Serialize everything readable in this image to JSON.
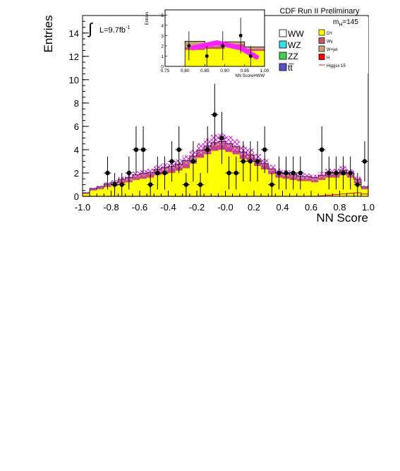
{
  "chart_data": {
    "type": "bar",
    "title": "CDF Run II Preliminary",
    "xlabel": "NN Score",
    "ylabel": "Entries",
    "lumi_label": "L=9.7fb",
    "lumi_sup": "-1",
    "mass_label": "m",
    "mass_sub": "H",
    "mass_value": "=145",
    "xlim": [
      -1.0,
      1.0
    ],
    "ylim": [
      0,
      15.5
    ],
    "xticks": [
      "-1.0",
      "-0.8",
      "-0.6",
      "-0.4",
      "-0.2",
      "-0.0",
      "0.2",
      "0.4",
      "0.6",
      "0.8",
      "1.0"
    ],
    "yticks": [
      "0",
      "2",
      "4",
      "6",
      "8",
      "10",
      "12",
      "14"
    ],
    "bin_edges_start": -1.0,
    "bin_width": 0.05,
    "legend": [
      {
        "label": "WW",
        "color": "#ffffff"
      },
      {
        "label": "WZ",
        "color": "#33ddee"
      },
      {
        "label": "ZZ",
        "color": "#44cc55"
      },
      {
        "label": "tt̅",
        "color": "#5555cc"
      },
      {
        "label": "DY",
        "color": "#ffff00"
      },
      {
        "label": "Wγ",
        "color": "#c8556a"
      },
      {
        "label": "W+jet",
        "color": "#c8a27a"
      },
      {
        "label": "H",
        "color": "#ff0000"
      },
      {
        "label": "Higgsx 15",
        "color": "#cc2222"
      }
    ],
    "series": [
      {
        "name": "DY",
        "color": "#ffff00",
        "values": [
          0.2,
          0.5,
          0.6,
          0.8,
          0.9,
          1.1,
          1.2,
          1.4,
          1.5,
          1.6,
          1.8,
          1.9,
          2.0,
          2.2,
          2.4,
          2.8,
          3.3,
          3.6,
          3.9,
          4.0,
          3.8,
          3.6,
          3.2,
          3.0,
          2.6,
          2.3,
          1.9,
          1.6,
          1.5,
          1.4,
          1.3,
          1.3,
          1.2,
          1.4,
          1.6,
          1.6,
          1.8,
          1.6,
          1.1,
          0.6
        ]
      },
      {
        "name": "Wγ",
        "color": "#c8556a",
        "values": [
          0.05,
          0.1,
          0.1,
          0.15,
          0.15,
          0.2,
          0.2,
          0.25,
          0.25,
          0.25,
          0.3,
          0.3,
          0.3,
          0.3,
          0.35,
          0.35,
          0.35,
          0.4,
          0.4,
          0.4,
          0.4,
          0.35,
          0.35,
          0.3,
          0.3,
          0.3,
          0.25,
          0.25,
          0.25,
          0.25,
          0.2,
          0.2,
          0.2,
          0.2,
          0.25,
          0.25,
          0.25,
          0.2,
          0.2,
          0.1
        ]
      },
      {
        "name": "W+jet",
        "color": "#c8a27a",
        "values": [
          0.05,
          0.05,
          0.1,
          0.1,
          0.15,
          0.15,
          0.2,
          0.2,
          0.2,
          0.2,
          0.2,
          0.25,
          0.25,
          0.25,
          0.3,
          0.3,
          0.3,
          0.3,
          0.3,
          0.3,
          0.3,
          0.3,
          0.25,
          0.25,
          0.25,
          0.2,
          0.2,
          0.2,
          0.2,
          0.2,
          0.2,
          0.2,
          0.2,
          0.2,
          0.2,
          0.2,
          0.2,
          0.2,
          0.15,
          0.1
        ]
      },
      {
        "name": "Higgsx 15",
        "color": "#cc2222",
        "values": [
          0.0,
          0.0,
          0.0,
          0.0,
          0.0,
          0.0,
          0.0,
          0.0,
          0.0,
          0.0,
          0.0,
          0.0,
          0.0,
          0.0,
          0.0,
          0.0,
          0.0,
          0.0,
          0.0,
          0.0,
          0.0,
          0.0,
          0.0,
          0.0,
          0.0,
          0.0,
          0.0,
          0.0,
          0.0,
          0.0,
          0.0,
          0.0,
          0.0,
          0.05,
          0.1,
          0.15,
          0.2,
          0.25,
          0.3,
          0.2
        ]
      }
    ],
    "uncertainty_fraction": 0.15,
    "data_points": {
      "x": [
        -0.825,
        -0.775,
        -0.725,
        -0.675,
        -0.625,
        -0.575,
        -0.525,
        -0.475,
        -0.425,
        -0.375,
        -0.325,
        -0.275,
        -0.225,
        -0.175,
        -0.125,
        -0.075,
        -0.025,
        0.025,
        0.075,
        0.125,
        0.175,
        0.225,
        0.275,
        0.325,
        0.375,
        0.425,
        0.475,
        0.525,
        0.675,
        0.725,
        0.775,
        0.825,
        0.875,
        0.925,
        0.975
      ],
      "y": [
        2,
        1,
        1,
        2,
        4,
        4,
        1,
        2,
        2,
        3,
        4,
        1,
        3,
        1,
        4,
        7,
        5,
        2,
        2,
        3,
        3,
        3,
        4,
        1,
        2,
        2,
        2,
        2,
        4,
        2,
        2,
        2,
        2,
        1,
        3
      ]
    },
    "inset": {
      "xlabel": "NN ScoreHWW",
      "ylabel": "Entries",
      "xlim": [
        0.75,
        1.0
      ],
      "ylim": [
        0,
        5.5
      ],
      "xticks": [
        "0.75",
        "0.80",
        "0.85",
        "0.90",
        "0.95",
        "1.00"
      ],
      "yticks": [
        "0",
        "1",
        "2",
        "3",
        "4",
        "5"
      ],
      "bin_edges_start": 0.8,
      "bin_width": 0.05,
      "series": [
        {
          "name": "DY",
          "color": "#ffff00",
          "values": [
            1.6,
            1.7,
            1.9,
            1.5
          ]
        },
        {
          "name": "Wγ",
          "color": "#c8556a",
          "values": [
            0.25,
            0.25,
            0.25,
            0.2
          ]
        },
        {
          "name": "W+jet",
          "color": "#c8a27a",
          "values": [
            0.6,
            0.3,
            0.25,
            0.2
          ]
        }
      ],
      "higgs_band": {
        "x": [
          0.82,
          0.88,
          0.94,
          0.98
        ],
        "y": [
          1.8,
          2.3,
          1.8,
          0.9
        ]
      },
      "data_points": {
        "x": [
          0.81,
          0.855,
          0.895,
          0.94,
          0.965
        ],
        "y": [
          2,
          1,
          2,
          3,
          1
        ]
      }
    }
  }
}
